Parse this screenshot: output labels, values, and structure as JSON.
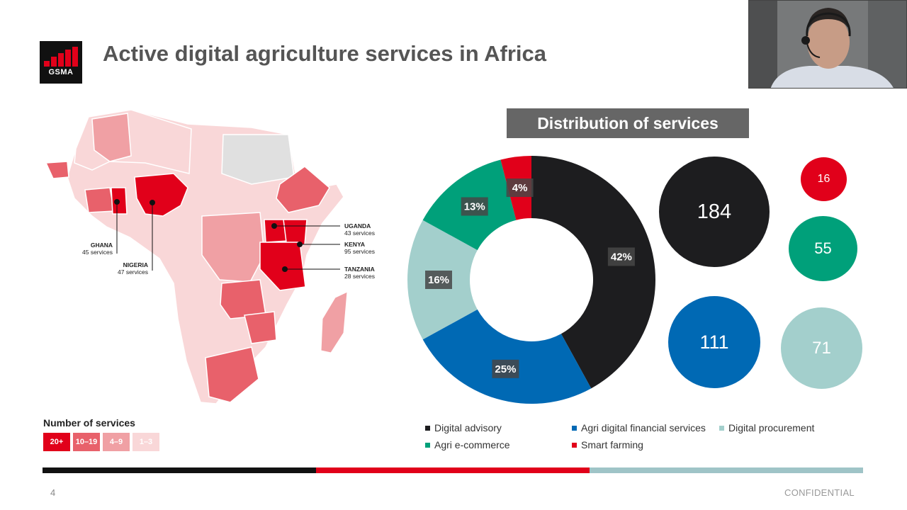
{
  "logo": {
    "text": "GSMA"
  },
  "title": "Active digital agriculture services in Africa",
  "map": {
    "callouts": [
      {
        "name": "GHANA",
        "count": "45 services"
      },
      {
        "name": "NIGERIA",
        "count": "47 services"
      },
      {
        "name": "UGANDA",
        "count": "43 services"
      },
      {
        "name": "KENYA",
        "count": "95 services"
      },
      {
        "name": "TANZANIA",
        "count": "28 services"
      }
    ],
    "legend_title": "Number of services",
    "legend": [
      {
        "label": "20+",
        "color": "#e1001a"
      },
      {
        "label": "10–19",
        "color": "#e8616b"
      },
      {
        "label": "4–9",
        "color": "#f0a0a4"
      },
      {
        "label": "1–3",
        "color": "#f9d7d8"
      }
    ]
  },
  "chart_data": [
    {
      "type": "pie",
      "title": "Distribution of services",
      "categories": [
        "Digital advisory",
        "Agri digital financial services",
        "Digital procurement",
        "Agri e-commerce",
        "Smart farming"
      ],
      "values": [
        42,
        25,
        16,
        13,
        4
      ],
      "labels": [
        "42%",
        "25%",
        "16%",
        "13%",
        "4%"
      ],
      "colors": [
        "#1d1d1f",
        "#0069b4",
        "#a3cfcc",
        "#00a07a",
        "#e1001a"
      ],
      "legend_position": "bottom"
    },
    {
      "type": "scatter",
      "categories": [
        "Digital advisory",
        "Agri digital financial services",
        "Digital procurement",
        "Agri e-commerce",
        "Smart farming"
      ],
      "values": [
        184,
        111,
        71,
        55,
        16
      ]
    }
  ],
  "footer": {
    "page": "4",
    "confidential": "CONFIDENTIAL"
  }
}
